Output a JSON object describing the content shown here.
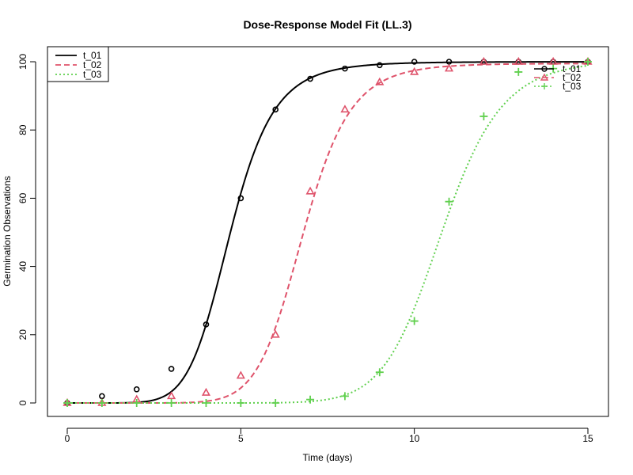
{
  "chart_data": {
    "type": "line",
    "title": "Dose-Response Model Fit (LL.3)",
    "xlabel": "Time (days)",
    "ylabel": "Germination Observations",
    "xlim": [
      0,
      15
    ],
    "ylim": [
      0,
      100
    ],
    "xticks": [
      0,
      5,
      10,
      15
    ],
    "yticks": [
      0,
      20,
      40,
      60,
      80,
      100
    ],
    "legend_position": "top-left",
    "colors": {
      "t_01": "#000000",
      "t_02": "#DF536B",
      "t_03": "#61D04F"
    },
    "series": [
      {
        "name": "t_01",
        "marker": "circle",
        "line": "solid",
        "x": [
          0,
          1,
          2,
          3,
          4,
          5,
          6,
          7,
          8,
          9,
          10,
          11,
          12,
          13,
          14,
          15
        ],
        "y": [
          0,
          2,
          4,
          10,
          23,
          60,
          86,
          95,
          98,
          99,
          100,
          100,
          100,
          100,
          100,
          100
        ]
      },
      {
        "name": "t_02",
        "marker": "triangle",
        "line": "dashed",
        "x": [
          0,
          1,
          2,
          3,
          4,
          5,
          6,
          7,
          8,
          9,
          10,
          11,
          12,
          13,
          14,
          15
        ],
        "y": [
          0,
          0,
          1,
          2,
          3,
          8,
          20,
          62,
          86,
          94,
          97,
          98,
          100,
          100,
          100,
          100
        ]
      },
      {
        "name": "t_03",
        "marker": "plus",
        "line": "dotted",
        "x": [
          0,
          1,
          2,
          3,
          4,
          5,
          6,
          7,
          8,
          9,
          10,
          11,
          12,
          13,
          14,
          15
        ],
        "y": [
          0,
          0,
          0,
          0,
          0,
          0,
          0,
          1,
          2,
          9,
          24,
          59,
          84,
          97,
          98,
          100
        ]
      }
    ]
  }
}
